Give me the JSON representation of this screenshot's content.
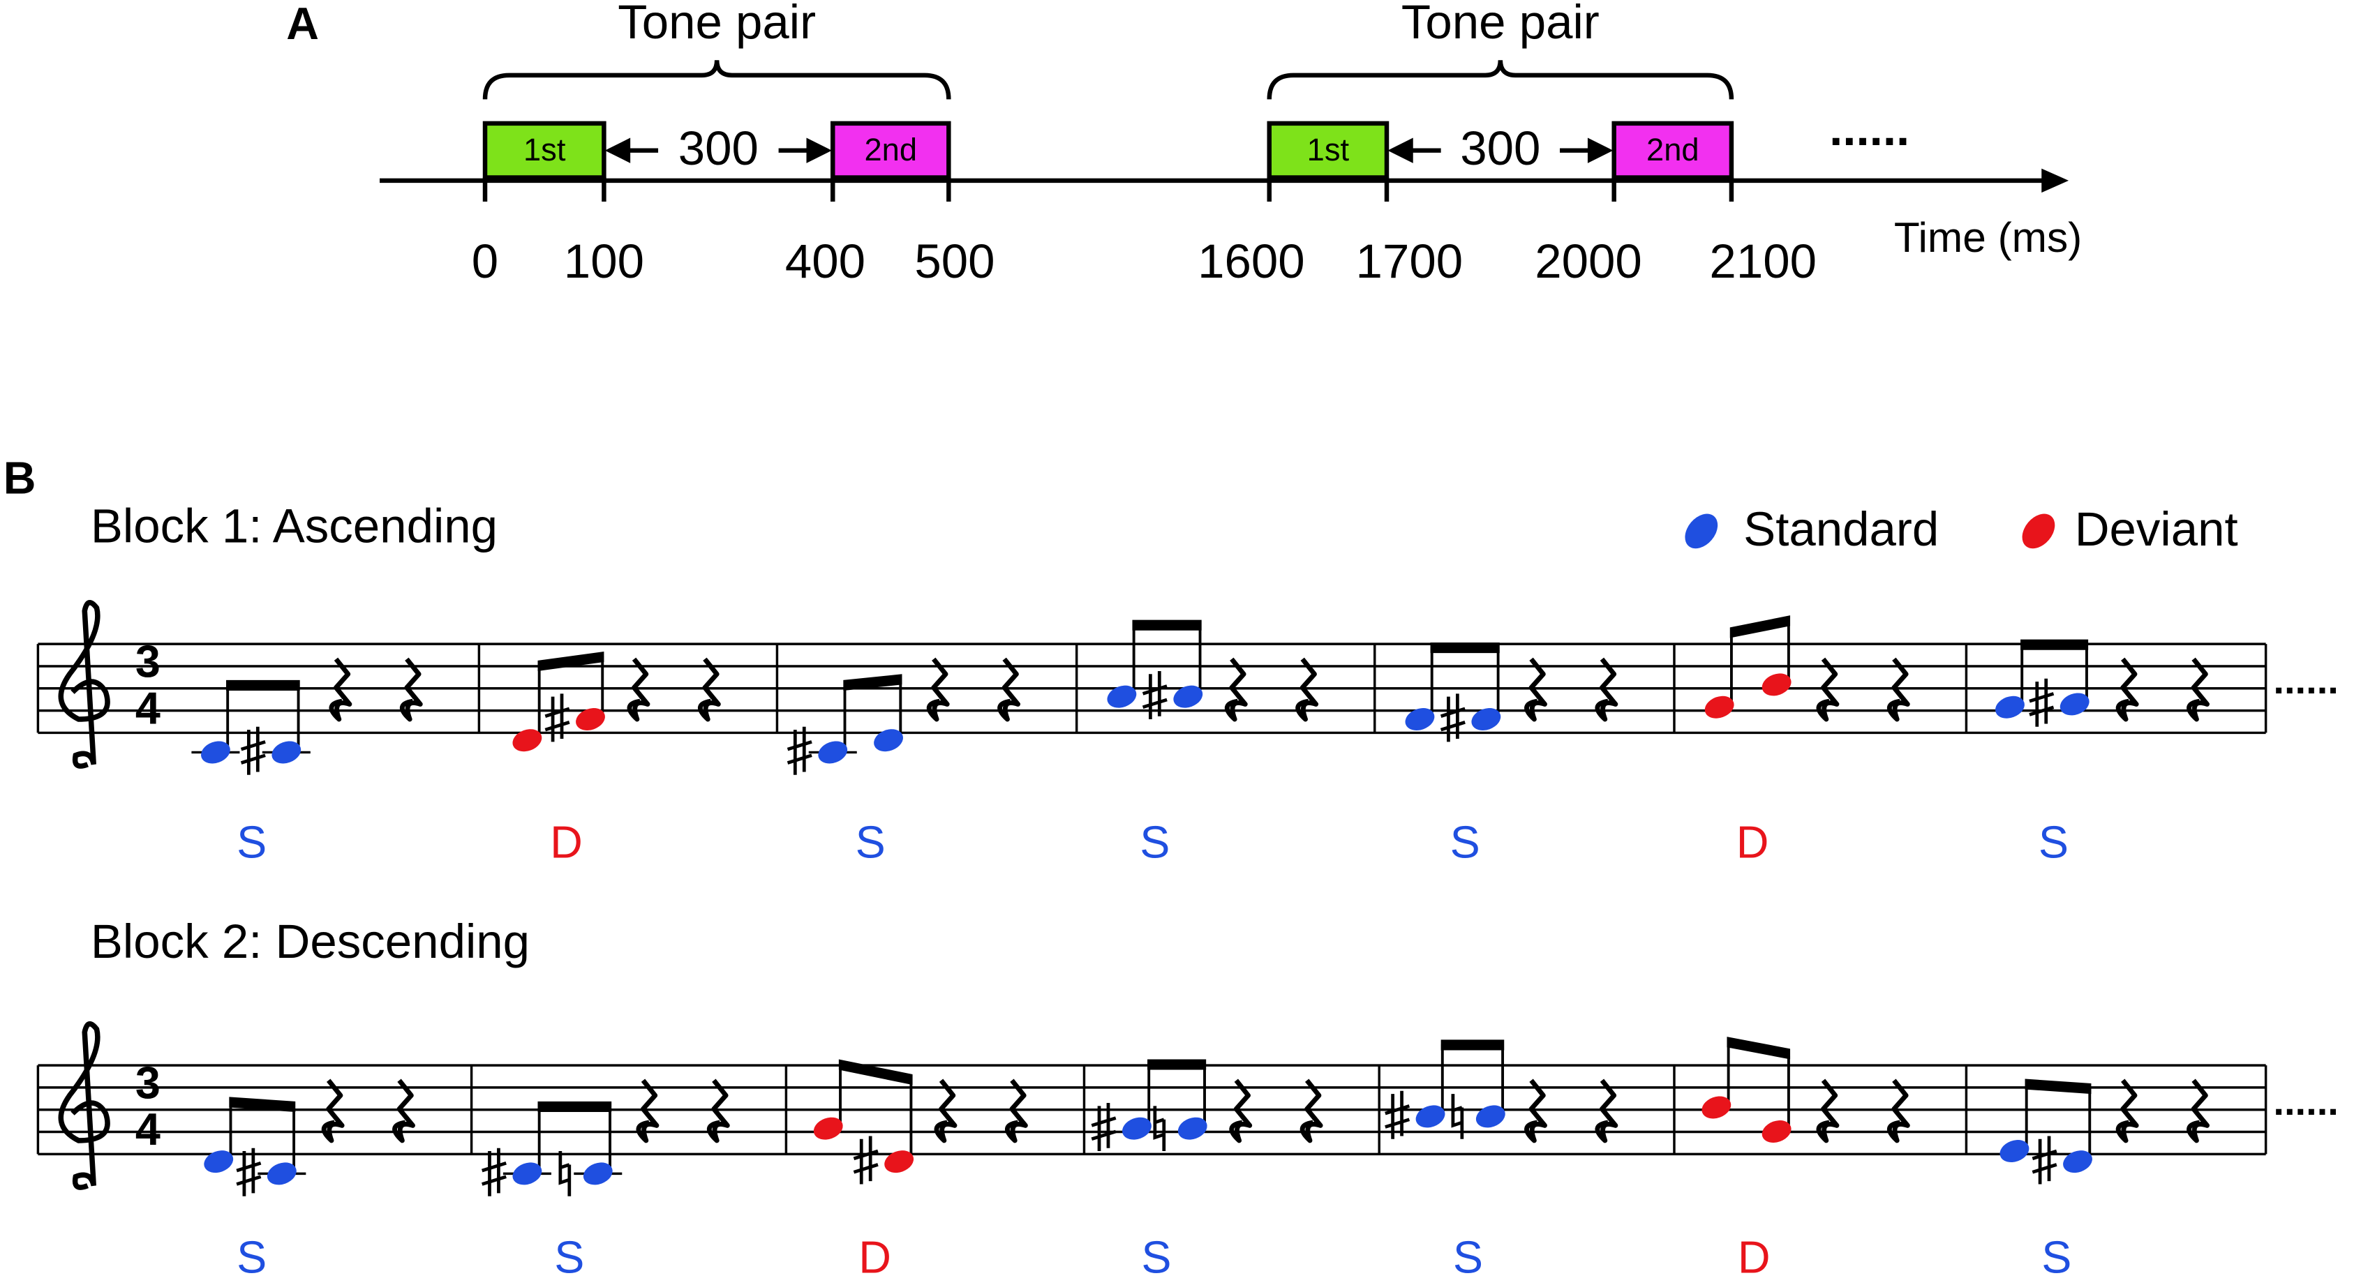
{
  "panel_a": {
    "label": "A",
    "tone_pairs": [
      {
        "title": "Tone pair",
        "first": "1st",
        "second": "2nd",
        "gap": "300"
      },
      {
        "title": "Tone pair",
        "first": "1st",
        "second": "2nd",
        "gap": "300"
      }
    ],
    "time_labels": [
      "0",
      "100",
      "400",
      "500",
      "1600",
      "1700",
      "2000",
      "2100"
    ],
    "axis_label": "Time (ms)",
    "ellipsis": "......"
  },
  "panel_b": {
    "label": "B",
    "legend": [
      {
        "label": "Standard",
        "color": "#1f4fe0"
      },
      {
        "label": "Deviant",
        "color": "#e8141b"
      }
    ],
    "time_signature": {
      "top": "3",
      "bottom": "4"
    },
    "blocks": [
      {
        "title": "Block 1: Ascending",
        "trial_labels": [
          "S",
          "D",
          "S",
          "S",
          "S",
          "D",
          "S"
        ],
        "ellipsis": "......"
      },
      {
        "title": "Block 2: Descending",
        "trial_labels": [
          "S",
          "S",
          "D",
          "S",
          "S",
          "D",
          "S"
        ],
        "ellipsis": "......"
      }
    ]
  }
}
